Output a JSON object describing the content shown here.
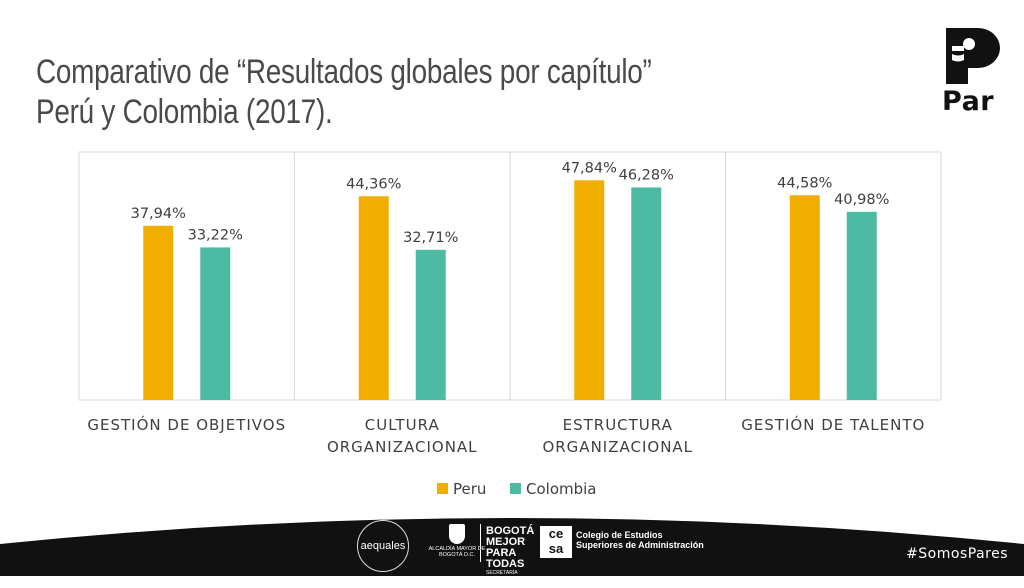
{
  "header": {
    "title_line1": "Comparativo de “Resultados globales por capítulo”",
    "title_line2": "Perú y Colombia (2017)."
  },
  "logo": {
    "text": "Par"
  },
  "footer": {
    "hashtag": "#SomosPares",
    "sponsors": {
      "aequales": "aequales",
      "alcaldia": "ALCALDÍA MAYOR DE BOGOTÁ D.C.",
      "bogota_main": "BOGOTÁ MEJOR",
      "bogota_sub": "PARA TODAS",
      "bogota_caption": "SECRETARÍA DISTRITAL DE LA MUJER",
      "cesa_logo": "ce sa",
      "cesa_line1": "Colegio de Estudios",
      "cesa_line2": "Superiores de Administración"
    }
  },
  "colors": {
    "peru": "#F0AE00",
    "colombia": "#4DBAA3",
    "band": "#111111"
  },
  "chart_data": {
    "type": "bar",
    "title": "",
    "categories": [
      [
        "GESTIÓN DE OBJETIVOS"
      ],
      [
        "CULTURA",
        "ORGANIZACIONAL"
      ],
      [
        "ESTRUCTURA",
        "ORGANIZACIONAL"
      ],
      [
        "GESTIÓN DE TALENTO"
      ]
    ],
    "series": [
      {
        "name": "Peru",
        "values": [
          37.94,
          44.36,
          47.84,
          44.58
        ],
        "labels": [
          "37,94%",
          "44,36%",
          "47,84%",
          "44,58%"
        ]
      },
      {
        "name": "Colombia",
        "values": [
          33.22,
          32.71,
          46.28,
          40.98
        ],
        "labels": [
          "33,22%",
          "32,71%",
          "46,28%",
          "40,98%"
        ]
      }
    ],
    "ylim": [
      0,
      54
    ],
    "xlabel": "",
    "ylabel": "",
    "grid": false,
    "legend": "bottom"
  }
}
